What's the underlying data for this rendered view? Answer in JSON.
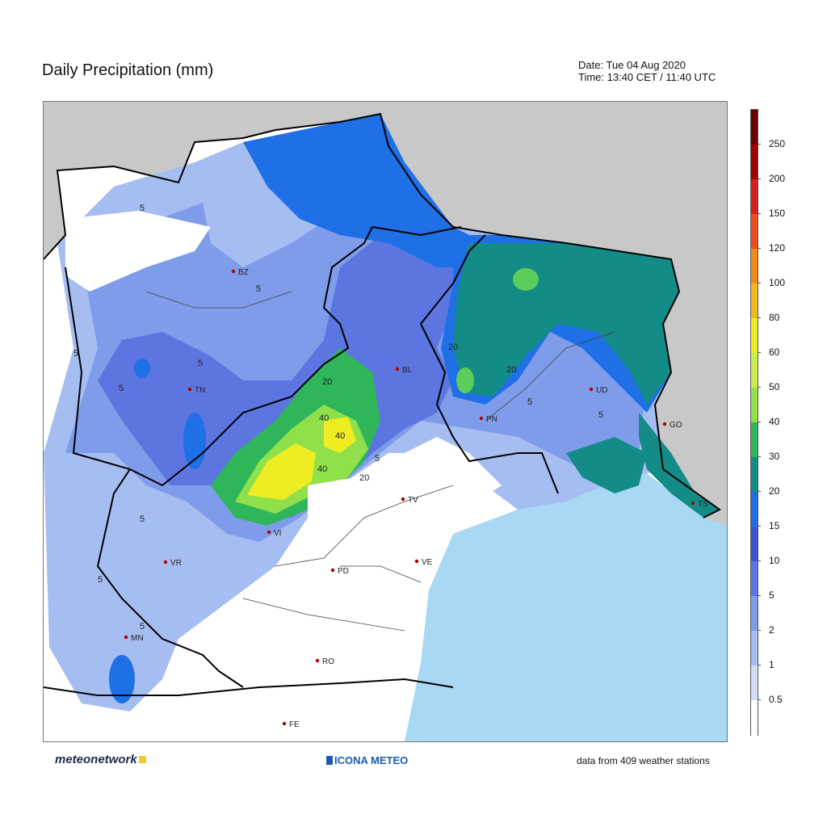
{
  "header": {
    "title": "Daily Precipitation (mm)",
    "date_line": "Date: Tue 04 Aug 2020",
    "time_line": "Time: 13:40 CET / 11:40 UTC"
  },
  "legend": {
    "labels": [
      "250",
      "200",
      "150",
      "120",
      "100",
      "80",
      "60",
      "50",
      "40",
      "30",
      "20",
      "15",
      "10",
      "5",
      "2",
      "1",
      "0.5"
    ],
    "colors": [
      "#6b0000",
      "#a30000",
      "#d61f1f",
      "#ee4b1f",
      "#f08a1a",
      "#f0b81a",
      "#eded22",
      "#c8f04a",
      "#8fe04a",
      "#2fb55a",
      "#138c88",
      "#1f6fe6",
      "#3c55d6",
      "#5d75e0",
      "#7f9ceb",
      "#a6bdf2",
      "#d3dcf8",
      "#ffffff"
    ]
  },
  "cities": [
    {
      "code": "BZ"
    },
    {
      "code": "TN"
    },
    {
      "code": "BL"
    },
    {
      "code": "UD"
    },
    {
      "code": "PN"
    },
    {
      "code": "GO"
    },
    {
      "code": "TS"
    },
    {
      "code": "TV"
    },
    {
      "code": "VI"
    },
    {
      "code": "VR"
    },
    {
      "code": "VE"
    },
    {
      "code": "PD"
    },
    {
      "code": "MN"
    },
    {
      "code": "RO"
    },
    {
      "code": "FE"
    }
  ],
  "contour_labels": [
    "5",
    "5",
    "5",
    "5",
    "5",
    "5",
    "5",
    "5",
    "5",
    "5",
    "20",
    "20",
    "20",
    "40",
    "40",
    "40",
    "20",
    "5"
  ],
  "footer": {
    "left_brand": "meteonetwork",
    "mid_brand": "ICONA METEO",
    "right_text": "data from 409 weather stations"
  }
}
